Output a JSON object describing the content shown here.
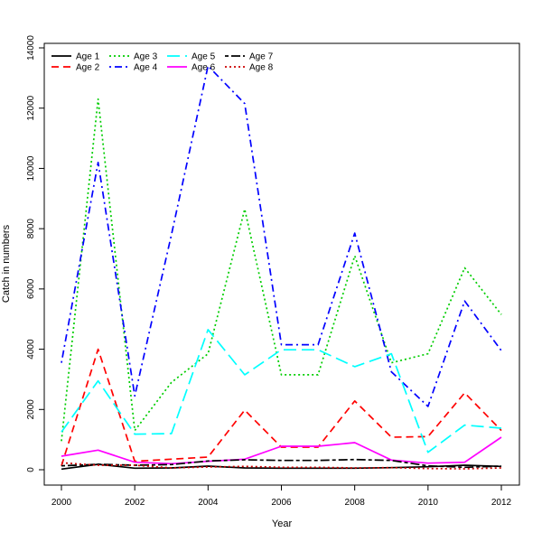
{
  "chart_data": {
    "type": "line",
    "title": "",
    "xlabel": "Year",
    "ylabel": "Catch in numbers",
    "xlim": [
      2000,
      2012
    ],
    "ylim": [
      0,
      14000
    ],
    "x_ticks": [
      2000,
      2002,
      2004,
      2006,
      2008,
      2010,
      2012
    ],
    "y_ticks": [
      0,
      2000,
      4000,
      6000,
      8000,
      10000,
      12000,
      14000
    ],
    "grid": false,
    "legend_position": "top-left",
    "x": [
      2000,
      2001,
      2002,
      2003,
      2004,
      2005,
      2006,
      2007,
      2008,
      2009,
      2010,
      2011,
      2012
    ],
    "series": [
      {
        "name": "Age 1",
        "color": "#000000",
        "dash": "solid",
        "values": [
          20,
          180,
          50,
          60,
          120,
          60,
          50,
          50,
          50,
          70,
          100,
          150,
          110
        ]
      },
      {
        "name": "Age 2",
        "color": "#ff0000",
        "dash": "dashed",
        "values": [
          130,
          4000,
          280,
          350,
          420,
          1980,
          750,
          750,
          2280,
          1080,
          1100,
          2550,
          1300
        ]
      },
      {
        "name": "Age 3",
        "color": "#00cd00",
        "dash": "dotted",
        "values": [
          950,
          12300,
          1300,
          2900,
          3850,
          8650,
          3150,
          3150,
          7100,
          3550,
          3850,
          6700,
          5150
        ]
      },
      {
        "name": "Age 4",
        "color": "#0000ff",
        "dash": "dotdash",
        "values": [
          3550,
          10200,
          2450,
          7800,
          13400,
          12150,
          4150,
          4150,
          7850,
          3250,
          2100,
          5600,
          3950
        ]
      },
      {
        "name": "Age 5",
        "color": "#00ffff",
        "dash": "longdash",
        "values": [
          1250,
          2950,
          1180,
          1200,
          4650,
          3150,
          3980,
          3980,
          3420,
          3850,
          580,
          1480,
          1380
        ]
      },
      {
        "name": "Age 6",
        "color": "#ff00ff",
        "dash": "solid",
        "values": [
          450,
          650,
          250,
          200,
          280,
          350,
          780,
          780,
          900,
          320,
          220,
          250,
          1080
        ]
      },
      {
        "name": "Age 7",
        "color": "#000000",
        "dash": "twodash",
        "values": [
          130,
          180,
          150,
          170,
          290,
          330,
          310,
          310,
          340,
          310,
          130,
          80,
          120
        ]
      },
      {
        "name": "Age 8",
        "color": "#cc0000",
        "dash": "dotted",
        "values": [
          230,
          150,
          150,
          60,
          90,
          110,
          80,
          80,
          60,
          70,
          40,
          30,
          60
        ]
      }
    ]
  }
}
